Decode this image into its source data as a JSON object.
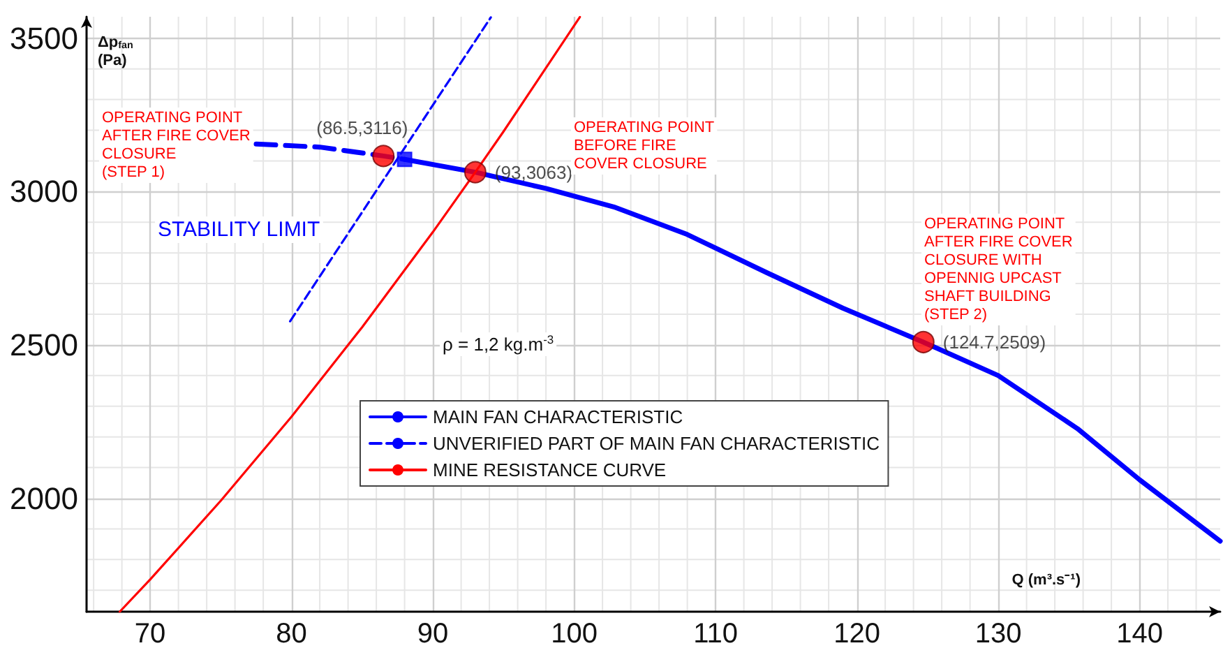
{
  "chart_data": {
    "type": "line",
    "xlabel": "Q (m³.s⁻¹)",
    "ylabel": "Δp$_{fan}$\n(Pa)",
    "xlim": [
      65.5,
      145.7
    ],
    "ylim": [
      1630,
      3570
    ],
    "xticks": [
      70,
      80,
      90,
      100,
      110,
      120,
      130,
      140
    ],
    "yticks": [
      2000,
      2500,
      3000,
      3500
    ],
    "grid": true,
    "legend": "bottom",
    "series": [
      {
        "name": "MAIN FAN CHARACTERISTIC",
        "color": "#0000ff",
        "line_style": "solid",
        "marker": "none",
        "x": [
          88,
          93,
          98,
          102.8,
          108,
          113.6,
          119,
          124.7,
          130,
          135.6,
          140,
          145.7
        ],
        "values": [
          3105,
          3063,
          3010,
          2950,
          2860,
          2736,
          2620,
          2509,
          2400,
          2227,
          2060,
          1860
        ]
      },
      {
        "name": "UNVERIFIED PART OF MAIN FAN CHARACTERISTIC",
        "color": "#0000ff",
        "line_style": "dashed",
        "marker": "none",
        "x": [
          77.5,
          82,
          86.5,
          88
        ],
        "values": [
          3155,
          3145,
          3116,
          3105
        ]
      },
      {
        "name": "MINE RESISTANCE CURVE",
        "color": "#ff0000",
        "line_style": "solid",
        "marker": "none",
        "x": [
          67.85,
          70,
          75,
          80,
          85,
          90,
          93,
          95,
          100.4
        ],
        "values": [
          1630,
          1735,
          1992,
          2266,
          2558,
          2868,
          3063,
          3196,
          3569
        ]
      },
      {
        "color": "#0000ff",
        "line_style": "dashed",
        "marker": "none",
        "x": [
          79.9,
          94.1
        ],
        "values": [
          2577,
          3568
        ]
      },
      {
        "type": "scatter",
        "color": "#ff0000",
        "marker": "circle",
        "x": [
          86.5,
          93,
          124.7
        ],
        "values": [
          3116,
          3063,
          2509
        ],
        "value_labels": [
          "(86.5,3116)",
          "(93,3063)",
          "(124.7,2509)"
        ]
      },
      {
        "type": "scatter",
        "color": "#0000ff",
        "marker": "square",
        "x": [
          88
        ],
        "values": [
          3105
        ]
      }
    ],
    "annotations": [
      "OPERATING POINT\nAFTER FIRE COVER\nCLOSURE\n(STEP 1)",
      "OPERATING POINT\nBEFORE FIRE\nCOVER CLOSURE",
      "OPERATING POINT\nAFTER FIRE COVER\nCLOSURE WITH\nOPENNIG UPCAST\nSHAFT BUILDING\n(STEP 2)",
      "STABILITY LIMIT",
      "ρ = 1,2 kg.m$^{-3}$"
    ]
  }
}
